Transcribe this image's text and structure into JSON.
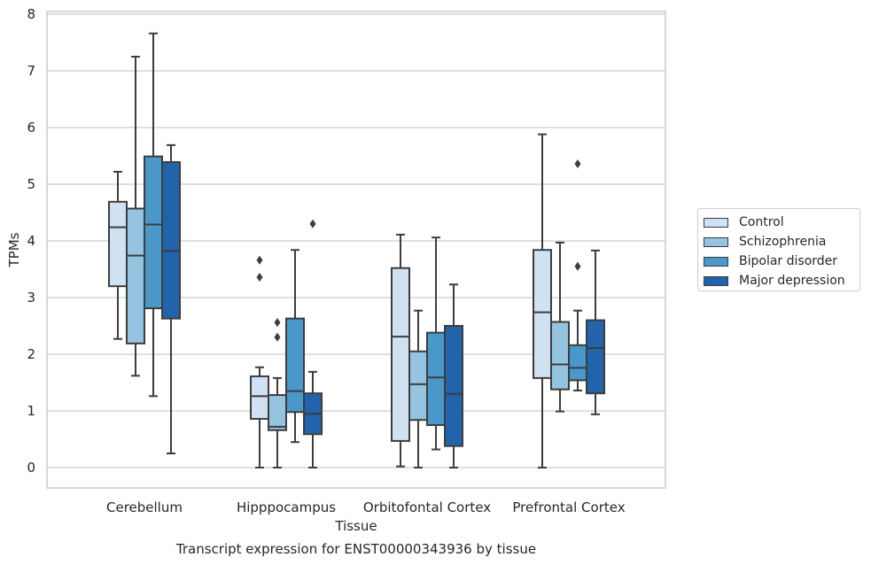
{
  "chart_data": {
    "type": "box",
    "xlabel": "Tissue",
    "ylabel": "TPMs",
    "caption": "Transcript expression for ENST00000343936 by tissue",
    "ylim": [
      -0.38,
      8.1
    ],
    "yticks": [
      0,
      1,
      2,
      3,
      4,
      5,
      6,
      7,
      8
    ],
    "grid": true,
    "legend_position": "right",
    "categories": [
      "Cerebellum",
      "Hipppocampus",
      "Orbitofontal Cortex",
      "Prefrontal Cortex"
    ],
    "series": [
      {
        "name": "Control",
        "color": "#d0e1f2",
        "boxes": [
          {
            "whisker_low": 2.27,
            "q1": 3.2,
            "median": 4.24,
            "q3": 4.69,
            "whisker_high": 5.22,
            "outliers": []
          },
          {
            "whisker_low": 0.0,
            "q1": 0.86,
            "median": 1.26,
            "q3": 1.61,
            "whisker_high": 1.77,
            "outliers": [
              3.36,
              3.66
            ]
          },
          {
            "whisker_low": 0.02,
            "q1": 0.47,
            "median": 2.31,
            "q3": 3.52,
            "whisker_high": 4.11,
            "outliers": []
          },
          {
            "whisker_low": 0.0,
            "q1": 1.58,
            "median": 2.74,
            "q3": 3.84,
            "whisker_high": 5.88,
            "outliers": []
          }
        ]
      },
      {
        "name": "Schizophrenia",
        "color": "#94c4df",
        "boxes": [
          {
            "whisker_low": 1.62,
            "q1": 2.19,
            "median": 3.74,
            "q3": 4.57,
            "whisker_high": 7.25,
            "outliers": []
          },
          {
            "whisker_low": 0.0,
            "q1": 0.66,
            "median": 0.72,
            "q3": 1.28,
            "whisker_high": 1.58,
            "outliers": [
              2.3,
              2.56
            ]
          },
          {
            "whisker_low": 0.0,
            "q1": 0.84,
            "median": 1.47,
            "q3": 2.05,
            "whisker_high": 2.77,
            "outliers": []
          },
          {
            "whisker_low": 0.99,
            "q1": 1.38,
            "median": 1.82,
            "q3": 2.57,
            "whisker_high": 3.97,
            "outliers": []
          }
        ]
      },
      {
        "name": "Bipolar disorder",
        "color": "#4a98c9",
        "boxes": [
          {
            "whisker_low": 1.26,
            "q1": 2.81,
            "median": 4.29,
            "q3": 5.49,
            "whisker_high": 7.66,
            "outliers": []
          },
          {
            "whisker_low": 0.45,
            "q1": 0.98,
            "median": 1.35,
            "q3": 2.63,
            "whisker_high": 3.84,
            "outliers": []
          },
          {
            "whisker_low": 0.32,
            "q1": 0.75,
            "median": 1.59,
            "q3": 2.38,
            "whisker_high": 4.06,
            "outliers": []
          },
          {
            "whisker_low": 1.36,
            "q1": 1.54,
            "median": 1.76,
            "q3": 2.16,
            "whisker_high": 2.77,
            "outliers": [
              3.55,
              5.36
            ]
          }
        ]
      },
      {
        "name": "Major depression",
        "color": "#2164ab",
        "boxes": [
          {
            "whisker_low": 0.25,
            "q1": 2.63,
            "median": 3.82,
            "q3": 5.39,
            "whisker_high": 5.69,
            "outliers": []
          },
          {
            "whisker_low": 0.0,
            "q1": 0.59,
            "median": 0.95,
            "q3": 1.31,
            "whisker_high": 1.69,
            "outliers": [
              4.3
            ]
          },
          {
            "whisker_low": 0.0,
            "q1": 0.38,
            "median": 1.3,
            "q3": 2.5,
            "whisker_high": 3.23,
            "outliers": []
          },
          {
            "whisker_low": 0.94,
            "q1": 1.31,
            "median": 2.11,
            "q3": 2.6,
            "whisker_high": 3.83,
            "outliers": []
          }
        ]
      }
    ]
  }
}
